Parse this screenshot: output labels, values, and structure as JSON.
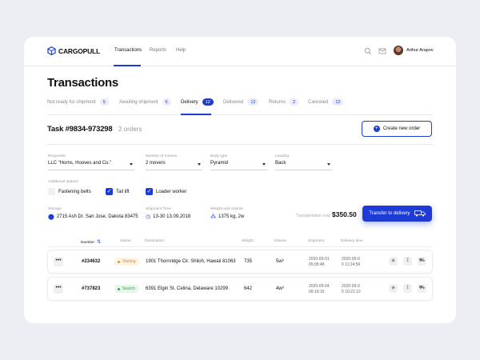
{
  "app": {
    "logo_text": "CARGOPULL",
    "brand_color": "#1f3bd6"
  },
  "nav": {
    "items": [
      {
        "label": "Transactions",
        "active": true
      },
      {
        "label": "Reports",
        "active": false
      },
      {
        "label": "Help",
        "active": false
      }
    ],
    "icons": [
      "search-icon",
      "mail-icon"
    ],
    "user_name": "Arthur Arapov"
  },
  "page_title": "Transactions",
  "tabs": [
    {
      "label": "Not ready for shipment",
      "count": "5"
    },
    {
      "label": "Awaiting shipment",
      "count": "6"
    },
    {
      "label": "Delivery",
      "count": "12",
      "active": true
    },
    {
      "label": "Delivered",
      "count": "12"
    },
    {
      "label": "Returns",
      "count": "2"
    },
    {
      "label": "Canceled",
      "count": "12"
    }
  ],
  "task": {
    "title": "Task #9834-973298",
    "orders": "2 orders",
    "create_label": "Create new order"
  },
  "form": {
    "requester": {
      "label": "Requester",
      "value": "LLC \"Horns, Hooves and Co.\""
    },
    "movers": {
      "label": "Number of movers",
      "value": "2 movers"
    },
    "body": {
      "label": "Body type",
      "value": "Pyramid"
    },
    "loading": {
      "label": "Loading",
      "value": "Back"
    },
    "additional_label": "Additional options",
    "options": [
      {
        "label": "Fastening belts",
        "checked": false
      },
      {
        "label": "Tail lift",
        "checked": true
      },
      {
        "label": "Loader worker",
        "checked": true
      }
    ],
    "storage": {
      "label": "Storage",
      "value": "2715 Ash Dr. San Jose,  Dakota 83475"
    },
    "shipment_time": {
      "label": "Shipment Time",
      "value": "13-30  13.09.2018"
    },
    "weight_volume": {
      "label": "Weight and volume",
      "value": "1375 kg, 2w"
    },
    "cost_label": "Transportation cost",
    "cost_value": "$350.50",
    "transfer_label": "Transfer to delivery"
  },
  "table": {
    "headers": {
      "number": "Number",
      "status": "Status",
      "destination": "Destination",
      "weight": "Weight",
      "volume": "Volume",
      "shipment": "Shipment",
      "delivery": "Delivery time"
    },
    "rows": [
      {
        "number": "#234632",
        "status": "Waiting",
        "status_type": "waiting",
        "destination": "1901 Thornridge Cir. Shiloh, Hawaii 81063",
        "weight": "735",
        "volume": "5w³",
        "shipment_date": "2020-05-01",
        "shipment_time": "05:05:48",
        "delivery_date": "2020-05-0",
        "delivery_time": "6 11:24:56"
      },
      {
        "number": "#737823",
        "status": "Search",
        "status_type": "search",
        "destination": "6391 Elgin St. Celina, Delaware 10299",
        "weight": "642",
        "volume": "4w³",
        "shipment_date": "2020-05-04",
        "shipment_time": "09:16:16",
        "delivery_date": "2020-05-0",
        "delivery_time": "5 10:21:13"
      }
    ],
    "row_actions": [
      "box-icon",
      "download-icon",
      "truck-dispatch-icon"
    ]
  }
}
